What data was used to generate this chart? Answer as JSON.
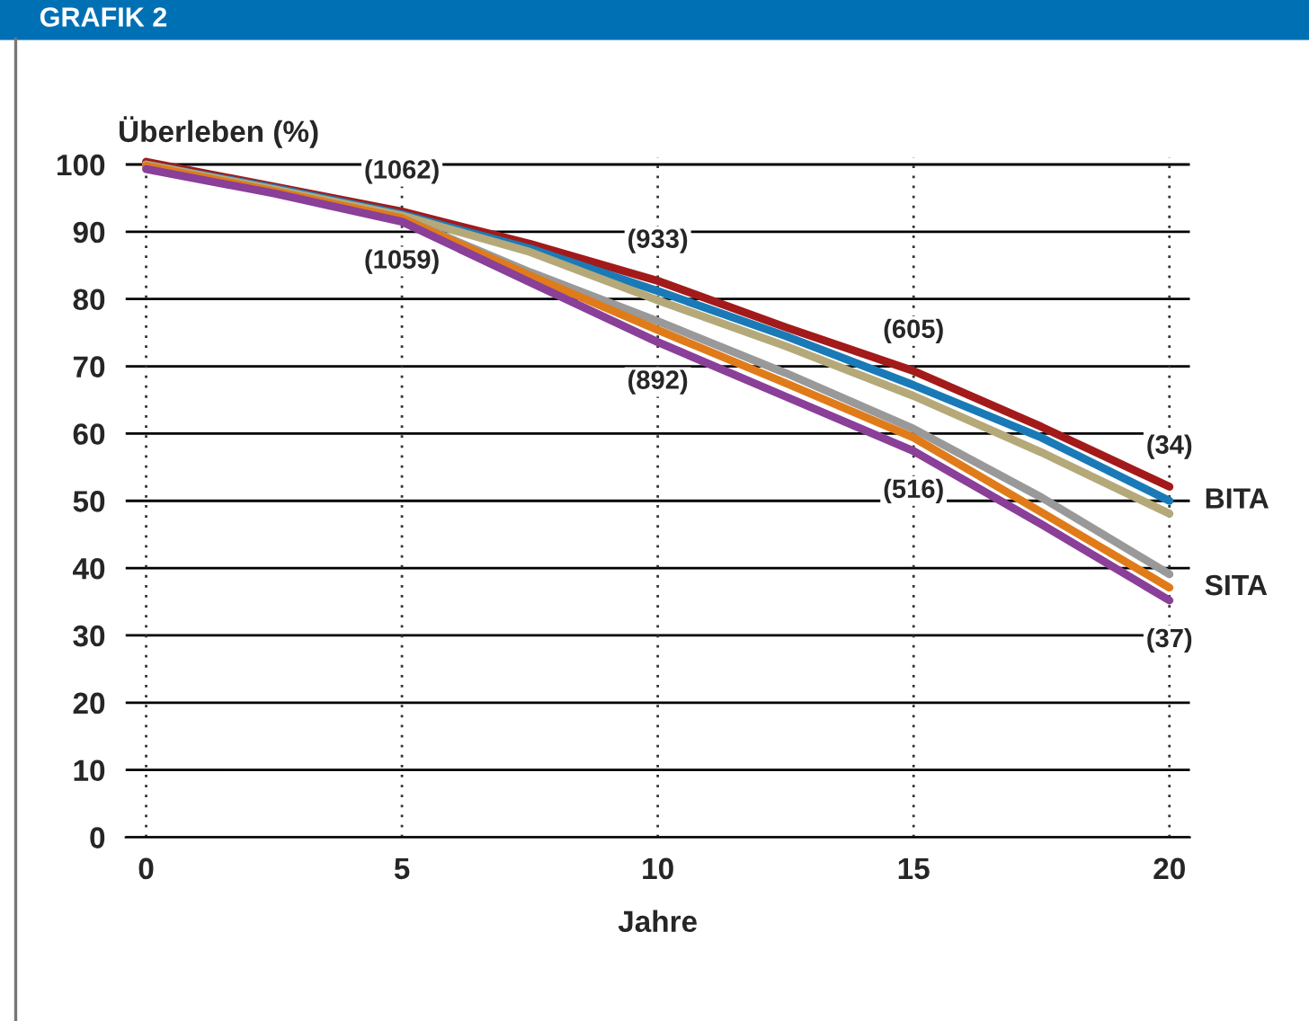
{
  "chart_data": {
    "type": "line",
    "title": "GRAFIK 2",
    "xlabel": "Jahre",
    "ylabel": "Überleben (%)",
    "x": [
      0,
      2.5,
      5,
      7.5,
      10,
      12.5,
      15,
      17.5,
      20
    ],
    "series": [
      {
        "color": "#a31a1a",
        "values": [
          100.4,
          96.7,
          93,
          88.2,
          82.7,
          75.8,
          69.3,
          61,
          52.1
        ]
      },
      {
        "color": "#1a7ab8",
        "values": [
          100,
          96.5,
          92.6,
          87.5,
          81.2,
          74.5,
          67.2,
          59.4,
          50
        ]
      },
      {
        "color": "#b5a97a",
        "values": [
          100,
          96.3,
          92.4,
          87,
          79.8,
          73,
          65.6,
          57.2,
          48.1
        ]
      },
      {
        "color": "#999999",
        "values": [
          99.8,
          96,
          92,
          84,
          76.7,
          69,
          60.7,
          50.5,
          39.1
        ]
      },
      {
        "color": "#e07b1a",
        "values": [
          99.8,
          96,
          92,
          83.5,
          75.4,
          67.5,
          59.4,
          48.3,
          37.1
        ]
      },
      {
        "color": "#8a3f99",
        "values": [
          99.3,
          95.7,
          91.5,
          82.5,
          73.6,
          65.5,
          57.4,
          46.5,
          35.2
        ]
      }
    ],
    "xlim": [
      -0.4,
      20.4
    ],
    "ylim": [
      0,
      101
    ],
    "xticks": [
      0,
      5,
      10,
      15,
      20
    ],
    "yticks": [
      0,
      10,
      20,
      30,
      40,
      50,
      60,
      70,
      80,
      90,
      100
    ],
    "grid": true,
    "legend": false,
    "marker": "none",
    "line_style": "solid",
    "annotations": [
      {
        "text": "(1062)",
        "x": 5,
        "y": 93
      },
      {
        "text": "(1059)",
        "x": 5,
        "y": 91.5
      },
      {
        "text": "(933)",
        "x": 10,
        "y": 82.7
      },
      {
        "text": "(892)",
        "x": 10,
        "y": 73.6
      },
      {
        "text": "(605)",
        "x": 15,
        "y": 69.3
      },
      {
        "text": "(516)",
        "x": 15,
        "y": 57.4
      },
      {
        "text": "(34)",
        "x": 20,
        "y": 52.1
      },
      {
        "text": "(37)",
        "x": 20,
        "y": 35.2
      },
      {
        "text": "BITA",
        "x": 20,
        "y": 50
      },
      {
        "text": "SITA",
        "x": 20,
        "y": 37.1
      }
    ]
  }
}
